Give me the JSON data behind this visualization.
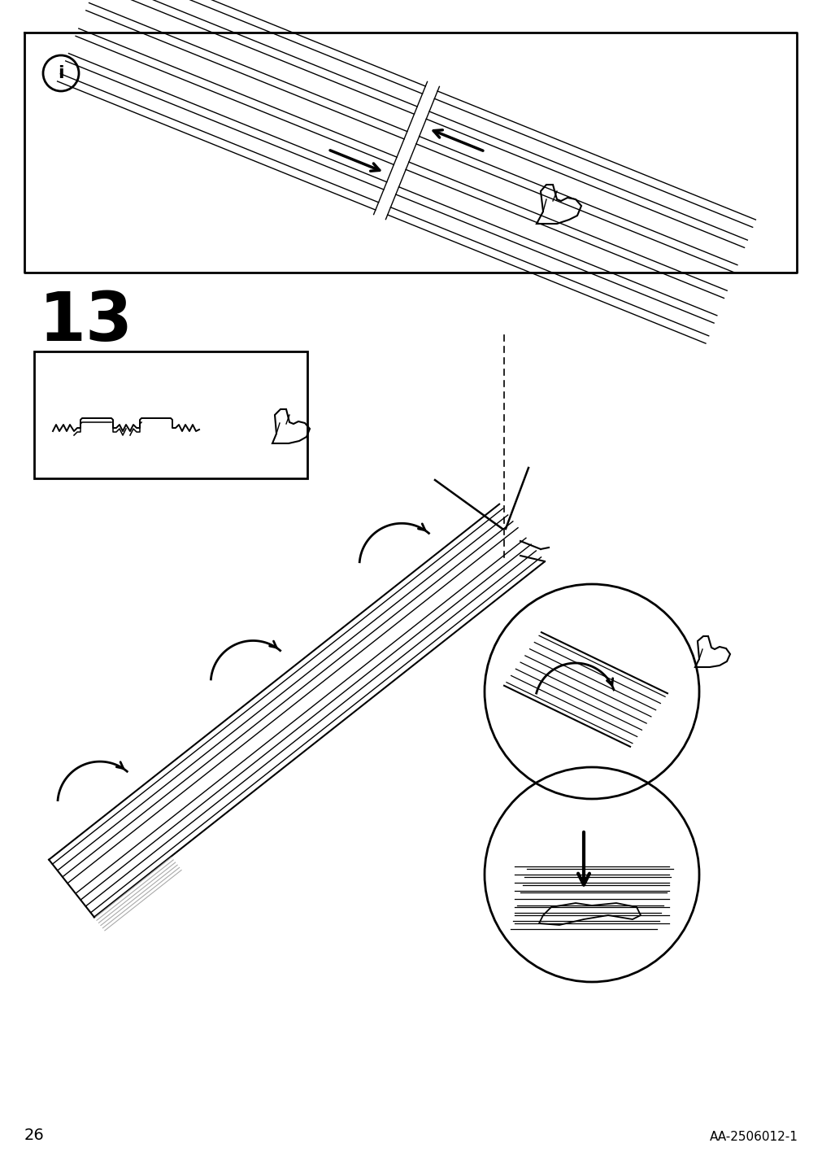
{
  "bg_color": "#ffffff",
  "line_color": "#000000",
  "page_number": "26",
  "doc_code": "AA-2506012-1",
  "step_number": "13"
}
